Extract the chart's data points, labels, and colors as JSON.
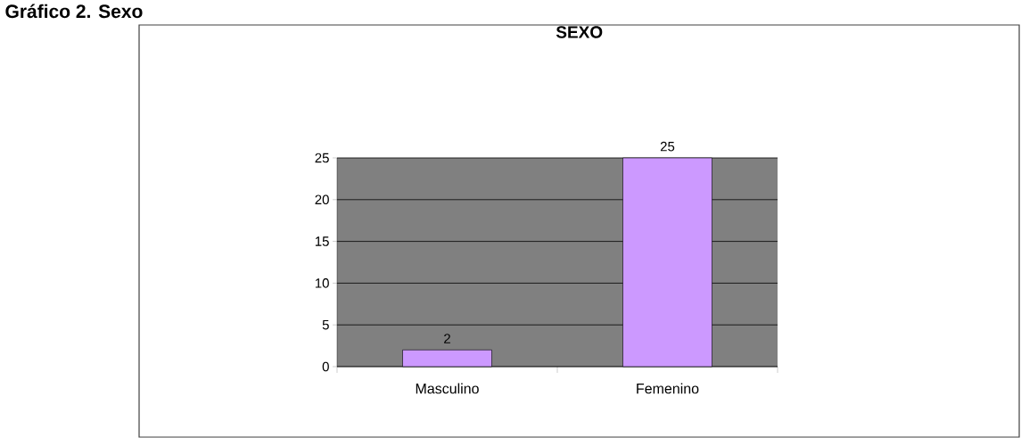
{
  "chart_data": {
    "type": "bar",
    "title": "SEXO",
    "categories": [
      "Masculino",
      "Femenino"
    ],
    "values": [
      2,
      25
    ],
    "color": "#cc99ff",
    "ylim": [
      0,
      25
    ],
    "yticks": [
      0,
      5,
      10,
      15,
      20,
      25
    ],
    "grid": "y",
    "data_labels": true,
    "annotations": [
      "Gráfico 2.  Sexo"
    ]
  }
}
